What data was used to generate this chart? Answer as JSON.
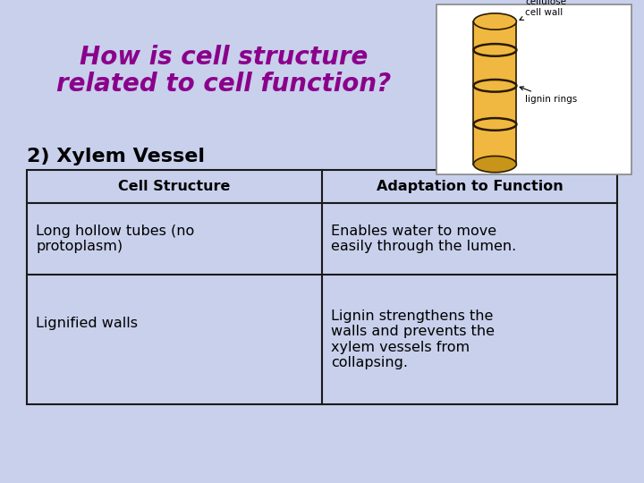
{
  "title_line1": "How is cell structure",
  "title_line2": "related to cell function?",
  "title_color": "#8B008B",
  "title_fontsize": 20,
  "subtitle": "2) Xylem Vessel",
  "subtitle_color": "#000000",
  "subtitle_fontsize": 16,
  "background_color": "#C8D0EC",
  "table_header": [
    "Cell Structure",
    "Adaptation to Function"
  ],
  "table_rows": [
    [
      "Long hollow tubes (no\nprotoplasm)",
      "Enables water to move\neasily through the lumen."
    ],
    [
      "Lignified walls",
      "Lignin strengthens the\nwalls and prevents the\nxylem vessels from\ncollapsing."
    ]
  ],
  "table_border_color": "#1A1A1A",
  "table_fontsize": 11.5,
  "header_fontsize": 11.5,
  "image_box_bg": "#FFFFFF",
  "cyl_color": "#F0B840",
  "cyl_dark": "#C8951A",
  "ring_color": "#2A1A00",
  "label_fontsize": 7.5
}
